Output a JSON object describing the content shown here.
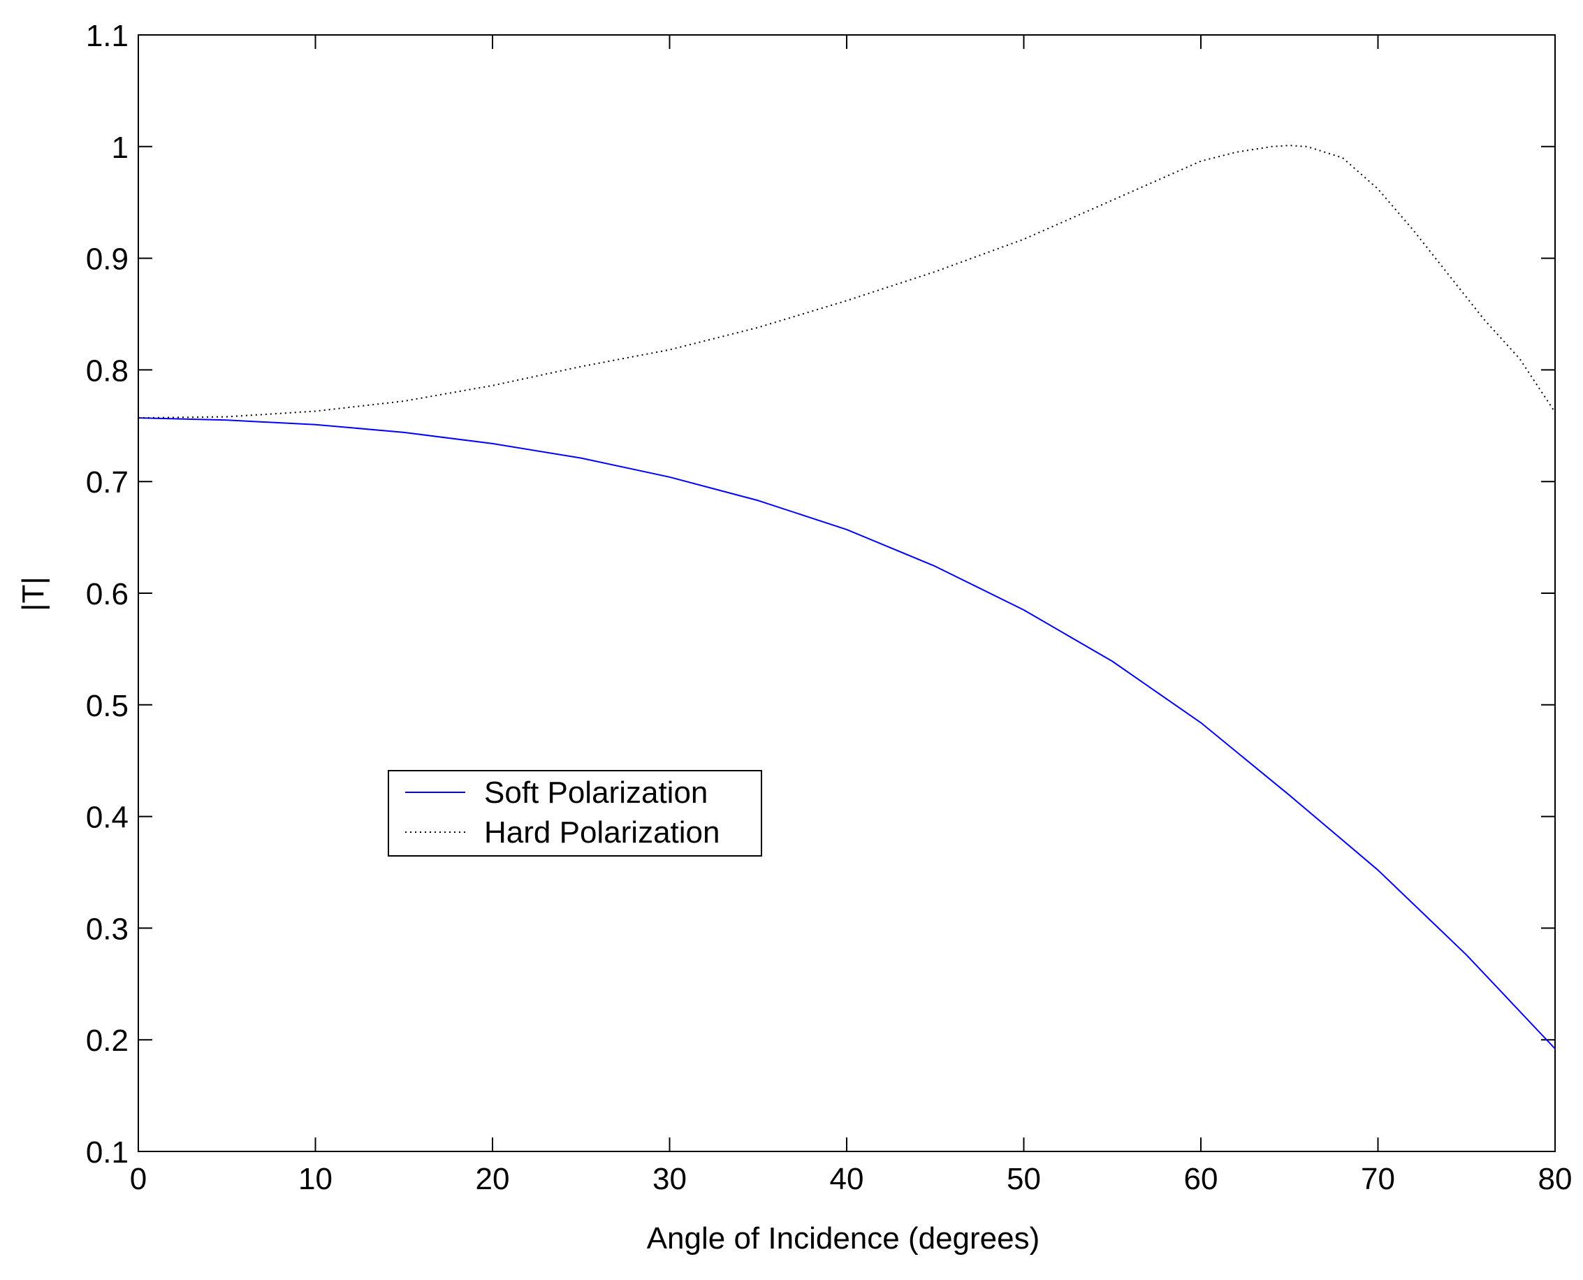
{
  "chart_data": {
    "type": "line",
    "title": "",
    "xlabel": "Angle of Incidence (degrees)",
    "ylabel": "|T|",
    "xlim": [
      0,
      80
    ],
    "ylim": [
      0.1,
      1.1
    ],
    "x_ticks": [
      0,
      10,
      20,
      30,
      40,
      50,
      60,
      70,
      80
    ],
    "y_ticks": [
      0.1,
      0.2,
      0.3,
      0.4,
      0.5,
      0.6,
      0.7,
      0.8,
      0.9,
      1,
      1.1
    ],
    "x_tick_labels": [
      "0",
      "10",
      "20",
      "30",
      "40",
      "50",
      "60",
      "70",
      "80"
    ],
    "y_tick_labels": [
      "0.1",
      "0.2",
      "0.3",
      "0.4",
      "0.5",
      "0.6",
      "0.7",
      "0.8",
      "0.9",
      "1",
      "1.1"
    ],
    "grid": false,
    "legend_position": "center-left",
    "series": [
      {
        "name": "Soft Polarization",
        "style": "solid",
        "color": "#0000ff",
        "x": [
          0,
          5,
          10,
          15,
          20,
          25,
          30,
          35,
          40,
          45,
          50,
          55,
          60,
          65,
          70,
          75,
          80
        ],
        "y": [
          0.757,
          0.755,
          0.751,
          0.744,
          0.734,
          0.721,
          0.704,
          0.683,
          0.657,
          0.624,
          0.585,
          0.539,
          0.484,
          0.419,
          0.352,
          0.276,
          0.192
        ]
      },
      {
        "name": "Hard Polarization",
        "style": "dotted",
        "color": "#000000",
        "x": [
          0,
          5,
          10,
          15,
          20,
          25,
          30,
          35,
          40,
          45,
          50,
          55,
          60,
          62,
          64,
          65,
          66,
          68,
          70,
          72,
          74,
          76,
          78,
          80
        ],
        "y": [
          0.757,
          0.758,
          0.763,
          0.772,
          0.786,
          0.803,
          0.818,
          0.838,
          0.862,
          0.888,
          0.917,
          0.952,
          0.987,
          0.995,
          1.0,
          1.001,
          1.0,
          0.99,
          0.962,
          0.925,
          0.885,
          0.845,
          0.81,
          0.762
        ]
      }
    ]
  }
}
